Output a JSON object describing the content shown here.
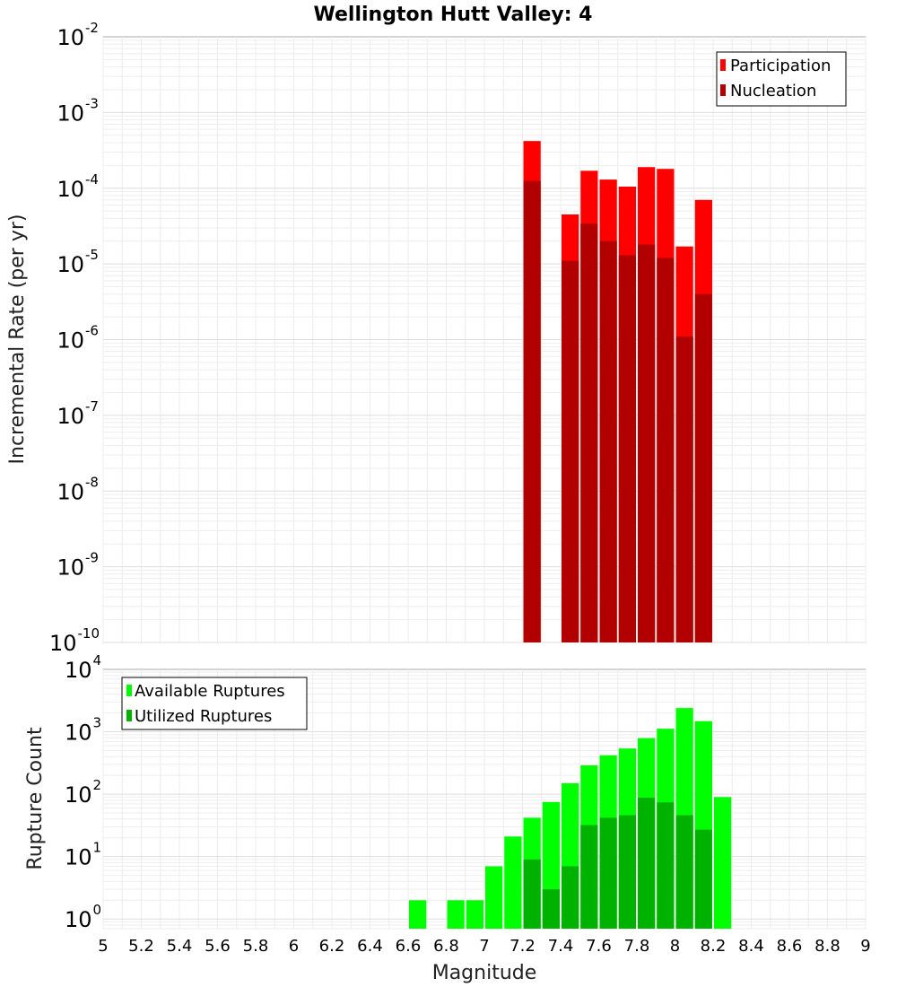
{
  "chart_data": [
    {
      "type": "bar",
      "title": "Wellington Hutt Valley: 4",
      "ylabel": "Incremental Rate (per yr)",
      "xlabel": "",
      "yscale": "log",
      "ylim": [
        1e-10,
        0.01
      ],
      "xlim": [
        5,
        9
      ],
      "ytick_base": "10",
      "ytick_exponents": [
        "-10",
        "-9",
        "-8",
        "-7",
        "-6",
        "-5",
        "-4",
        "-3",
        "-2"
      ],
      "grid": true,
      "legend_position": "top-right",
      "x": [
        7.25,
        7.45,
        7.55,
        7.65,
        7.75,
        7.85,
        7.95,
        8.05,
        8.15
      ],
      "series": [
        {
          "name": "Participation",
          "color": "#ff0000",
          "values": [
            0.00042,
            4.5e-05,
            0.00017,
            0.00013,
            0.000105,
            0.00019,
            0.00018,
            1.7e-05,
            7e-05
          ]
        },
        {
          "name": "Nucleation",
          "color": "#b20000",
          "values": [
            0.000125,
            1.1e-05,
            3.4e-05,
            2e-05,
            1.3e-05,
            1.8e-05,
            1.2e-05,
            1.1e-06,
            4e-06
          ]
        }
      ]
    },
    {
      "type": "bar",
      "title": "",
      "ylabel": "Rupture Count",
      "xlabel": "Magnitude",
      "yscale": "log",
      "ylim": [
        0.7,
        10000
      ],
      "xlim": [
        5,
        9
      ],
      "ytick_base": "10",
      "ytick_exponents": [
        "0",
        "1",
        "2",
        "3",
        "4"
      ],
      "x_tick_labels": [
        "5",
        "5.2",
        "5.4",
        "5.6",
        "5.8",
        "6",
        "6.2",
        "6.4",
        "6.6",
        "6.8",
        "7",
        "7.2",
        "7.4",
        "7.6",
        "7.8",
        "8",
        "8.2",
        "8.4",
        "8.6",
        "8.8",
        "9"
      ],
      "grid": true,
      "legend_position": "top-left",
      "x": [
        6.65,
        6.85,
        6.95,
        7.05,
        7.15,
        7.25,
        7.35,
        7.45,
        7.55,
        7.65,
        7.75,
        7.85,
        7.95,
        8.05,
        8.15,
        8.25
      ],
      "series": [
        {
          "name": "Available Ruptures",
          "color": "#00ff00",
          "values": [
            2,
            2,
            2,
            7,
            21,
            42,
            75,
            150,
            290,
            420,
            540,
            790,
            1120,
            2400,
            1480,
            90
          ]
        },
        {
          "name": "Utilized Ruptures",
          "color": "#00b200",
          "values": [
            0,
            0,
            0,
            0,
            0,
            9,
            3,
            7,
            32,
            42,
            46,
            88,
            74,
            46,
            27,
            0
          ]
        }
      ]
    }
  ]
}
